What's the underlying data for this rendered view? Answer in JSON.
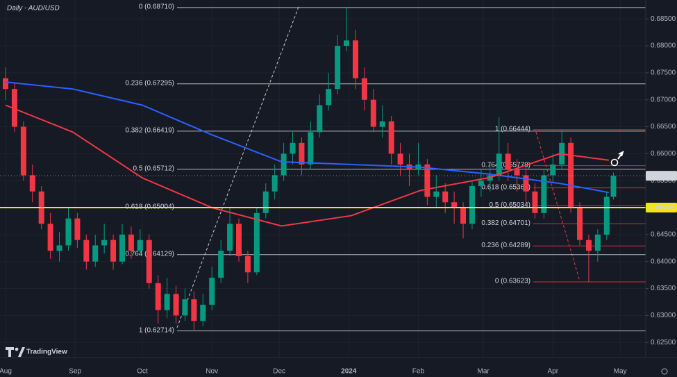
{
  "chart_data": {
    "type": "candlestick",
    "title": "Daily - AUD/USD",
    "watermark": "TradingView",
    "up_color": "#089981",
    "down_color": "#f23645",
    "x": [
      0,
      4,
      8,
      12,
      16,
      20,
      24,
      28,
      32,
      36,
      40,
      44,
      48,
      52,
      56,
      60,
      64,
      68,
      72,
      76,
      80,
      84,
      88,
      92,
      96,
      100,
      104,
      108,
      112,
      116,
      120,
      124,
      128,
      132,
      136,
      140,
      144,
      148,
      152,
      156,
      160,
      164,
      168,
      172,
      176,
      180,
      184,
      188,
      192,
      196,
      200,
      204,
      208,
      212,
      216,
      220,
      224,
      228,
      232,
      236,
      240,
      244,
      248,
      252,
      256,
      260,
      264,
      268,
      271
    ],
    "open": [
      0.674,
      0.672,
      0.665,
      0.656,
      0.653,
      0.647,
      0.642,
      0.643,
      0.648,
      0.644,
      0.64,
      0.643,
      0.644,
      0.64,
      0.645,
      0.642,
      0.644,
      0.636,
      0.631,
      0.634,
      0.63,
      0.633,
      0.629,
      0.632,
      0.637,
      0.642,
      0.647,
      0.641,
      0.638,
      0.649,
      0.653,
      0.656,
      0.66,
      0.662,
      0.658,
      0.664,
      0.669,
      0.672,
      0.68,
      0.681,
      0.674,
      0.67,
      0.665,
      0.666,
      0.66,
      0.658,
      0.657,
      0.658,
      0.652,
      0.653,
      0.651,
      0.65,
      0.647,
      0.654,
      0.655,
      0.656,
      0.66,
      0.657,
      0.656,
      0.653,
      0.649,
      0.656,
      0.658,
      0.662,
      0.65,
      0.644,
      0.642,
      0.645,
      0.652
    ],
    "high": [
      0.676,
      0.673,
      0.666,
      0.658,
      0.654,
      0.649,
      0.6455,
      0.65,
      0.649,
      0.645,
      0.645,
      0.647,
      0.645,
      0.647,
      0.6465,
      0.646,
      0.645,
      0.6375,
      0.637,
      0.6355,
      0.635,
      0.6345,
      0.634,
      0.639,
      0.644,
      0.65,
      0.648,
      0.642,
      0.65,
      0.6545,
      0.658,
      0.662,
      0.664,
      0.663,
      0.666,
      0.671,
      0.675,
      0.682,
      0.6871,
      0.683,
      0.676,
      0.672,
      0.669,
      0.667,
      0.662,
      0.66,
      0.662,
      0.659,
      0.656,
      0.6545,
      0.653,
      0.651,
      0.655,
      0.657,
      0.658,
      0.6668,
      0.662,
      0.659,
      0.6575,
      0.6545,
      0.657,
      0.66,
      0.6644,
      0.663,
      0.651,
      0.645,
      0.646,
      0.653,
      0.6565
    ],
    "low": [
      0.67,
      0.664,
      0.655,
      0.651,
      0.646,
      0.6405,
      0.64,
      0.642,
      0.6425,
      0.6385,
      0.639,
      0.6415,
      0.6385,
      0.6395,
      0.6405,
      0.641,
      0.635,
      0.6285,
      0.6295,
      0.6285,
      0.629,
      0.6271,
      0.628,
      0.631,
      0.636,
      0.641,
      0.64,
      0.636,
      0.6375,
      0.648,
      0.6515,
      0.655,
      0.658,
      0.656,
      0.657,
      0.663,
      0.668,
      0.671,
      0.679,
      0.672,
      0.668,
      0.664,
      0.663,
      0.658,
      0.656,
      0.654,
      0.656,
      0.6505,
      0.65,
      0.649,
      0.647,
      0.6443,
      0.646,
      0.652,
      0.653,
      0.655,
      0.655,
      0.653,
      0.651,
      0.648,
      0.648,
      0.6545,
      0.657,
      0.649,
      0.643,
      0.6362,
      0.64,
      0.644,
      0.6515
    ],
    "close": [
      0.672,
      0.665,
      0.656,
      0.653,
      0.647,
      0.642,
      0.643,
      0.648,
      0.644,
      0.64,
      0.643,
      0.644,
      0.64,
      0.645,
      0.642,
      0.644,
      0.636,
      0.631,
      0.634,
      0.63,
      0.633,
      0.629,
      0.632,
      0.637,
      0.642,
      0.647,
      0.641,
      0.638,
      0.649,
      0.653,
      0.656,
      0.66,
      0.662,
      0.658,
      0.664,
      0.669,
      0.672,
      0.68,
      0.681,
      0.674,
      0.67,
      0.665,
      0.666,
      0.66,
      0.658,
      0.657,
      0.658,
      0.652,
      0.653,
      0.651,
      0.65,
      0.647,
      0.654,
      0.655,
      0.656,
      0.66,
      0.657,
      0.656,
      0.653,
      0.649,
      0.656,
      0.658,
      0.662,
      0.65,
      0.644,
      0.642,
      0.645,
      0.652,
      0.6559
    ],
    "series": [
      {
        "color": "#2962ff",
        "x": [
          0,
          30,
          61,
          92,
          123,
          154,
          185,
          216,
          247,
          269
        ],
        "values": [
          0.6733,
          0.672,
          0.669,
          0.6635,
          0.6585,
          0.658,
          0.6575,
          0.6562,
          0.6545,
          0.6528
        ]
      },
      {
        "color": "#f23645",
        "x": [
          0,
          30,
          61,
          92,
          123,
          154,
          185,
          216,
          247,
          269
        ],
        "values": [
          0.669,
          0.664,
          0.6555,
          0.65,
          0.6466,
          0.6485,
          0.6532,
          0.6556,
          0.66,
          0.6588
        ]
      }
    ],
    "fib_retracements": [
      [
        {
          "value": 0.6871,
          "label": "0 (0.68710)"
        },
        {
          "value": 0.67295,
          "label": "0.236 (0.67295)"
        },
        {
          "value": 0.66419,
          "label": "0.382 (0.66419)"
        },
        {
          "value": 0.65712,
          "label": "0.5 (0.65712)"
        },
        {
          "value": 0.65004,
          "label": "0.618 (0.65004)"
        },
        {
          "value": 0.64129,
          "label": "0.764 (0.64129)"
        },
        {
          "value": 0.62714,
          "label": "1 (0.62714)"
        }
      ],
      [
        {
          "value": 0.66444,
          "label": "1 (0.66444)"
        },
        {
          "value": 0.65778,
          "label": "0.764 (0.65778)"
        },
        {
          "value": 0.65366,
          "label": "0.618 (0.65366)"
        },
        {
          "value": 0.65034,
          "label": "0.5 (0.65034)"
        },
        {
          "value": 0.64701,
          "label": "0.382 (0.64701)"
        },
        {
          "value": 0.64289,
          "label": "0.236 (0.64289)"
        },
        {
          "value": 0.63623,
          "label": "0 (0.63623)"
        }
      ]
    ],
    "price_tags": [
      {
        "value": 0.65592,
        "label": "0.65592",
        "color": "#d1d4dc"
      },
      {
        "value": 0.65,
        "label": "0.65000",
        "color": "#f7e600"
      }
    ],
    "xlim": [
      -2.48,
      285.4
    ],
    "ylim": [
      0.6222,
      0.6885
    ],
    "xticks": [
      {
        "value": 0,
        "label": "Aug"
      },
      {
        "value": 31,
        "label": "Sep"
      },
      {
        "value": 61,
        "label": "Oct"
      },
      {
        "value": 92,
        "label": "Nov"
      },
      {
        "value": 122,
        "label": "Dec"
      },
      {
        "value": 153,
        "label": "2024"
      },
      {
        "value": 184,
        "label": "Feb"
      },
      {
        "value": 213,
        "label": "Mar"
      },
      {
        "value": 244,
        "label": "Apr"
      },
      {
        "value": 274,
        "label": "May"
      }
    ],
    "yticks": [
      {
        "value": 0.625,
        "label": "0.62500"
      },
      {
        "value": 0.63,
        "label": "0.63000"
      },
      {
        "value": 0.635,
        "label": "0.63500"
      },
      {
        "value": 0.64,
        "label": "0.64000"
      },
      {
        "value": 0.645,
        "label": "0.64500"
      },
      {
        "value": 0.65,
        "label": "0.65000"
      },
      {
        "value": 0.655,
        "label": "0.65500"
      },
      {
        "value": 0.66,
        "label": "0.66000"
      },
      {
        "value": 0.665,
        "label": "0.66500"
      },
      {
        "value": 0.67,
        "label": "0.67000"
      },
      {
        "value": 0.675,
        "label": "0.67500"
      },
      {
        "value": 0.68,
        "label": "0.68000"
      },
      {
        "value": 0.685,
        "label": "0.68500"
      }
    ],
    "grid": true
  }
}
